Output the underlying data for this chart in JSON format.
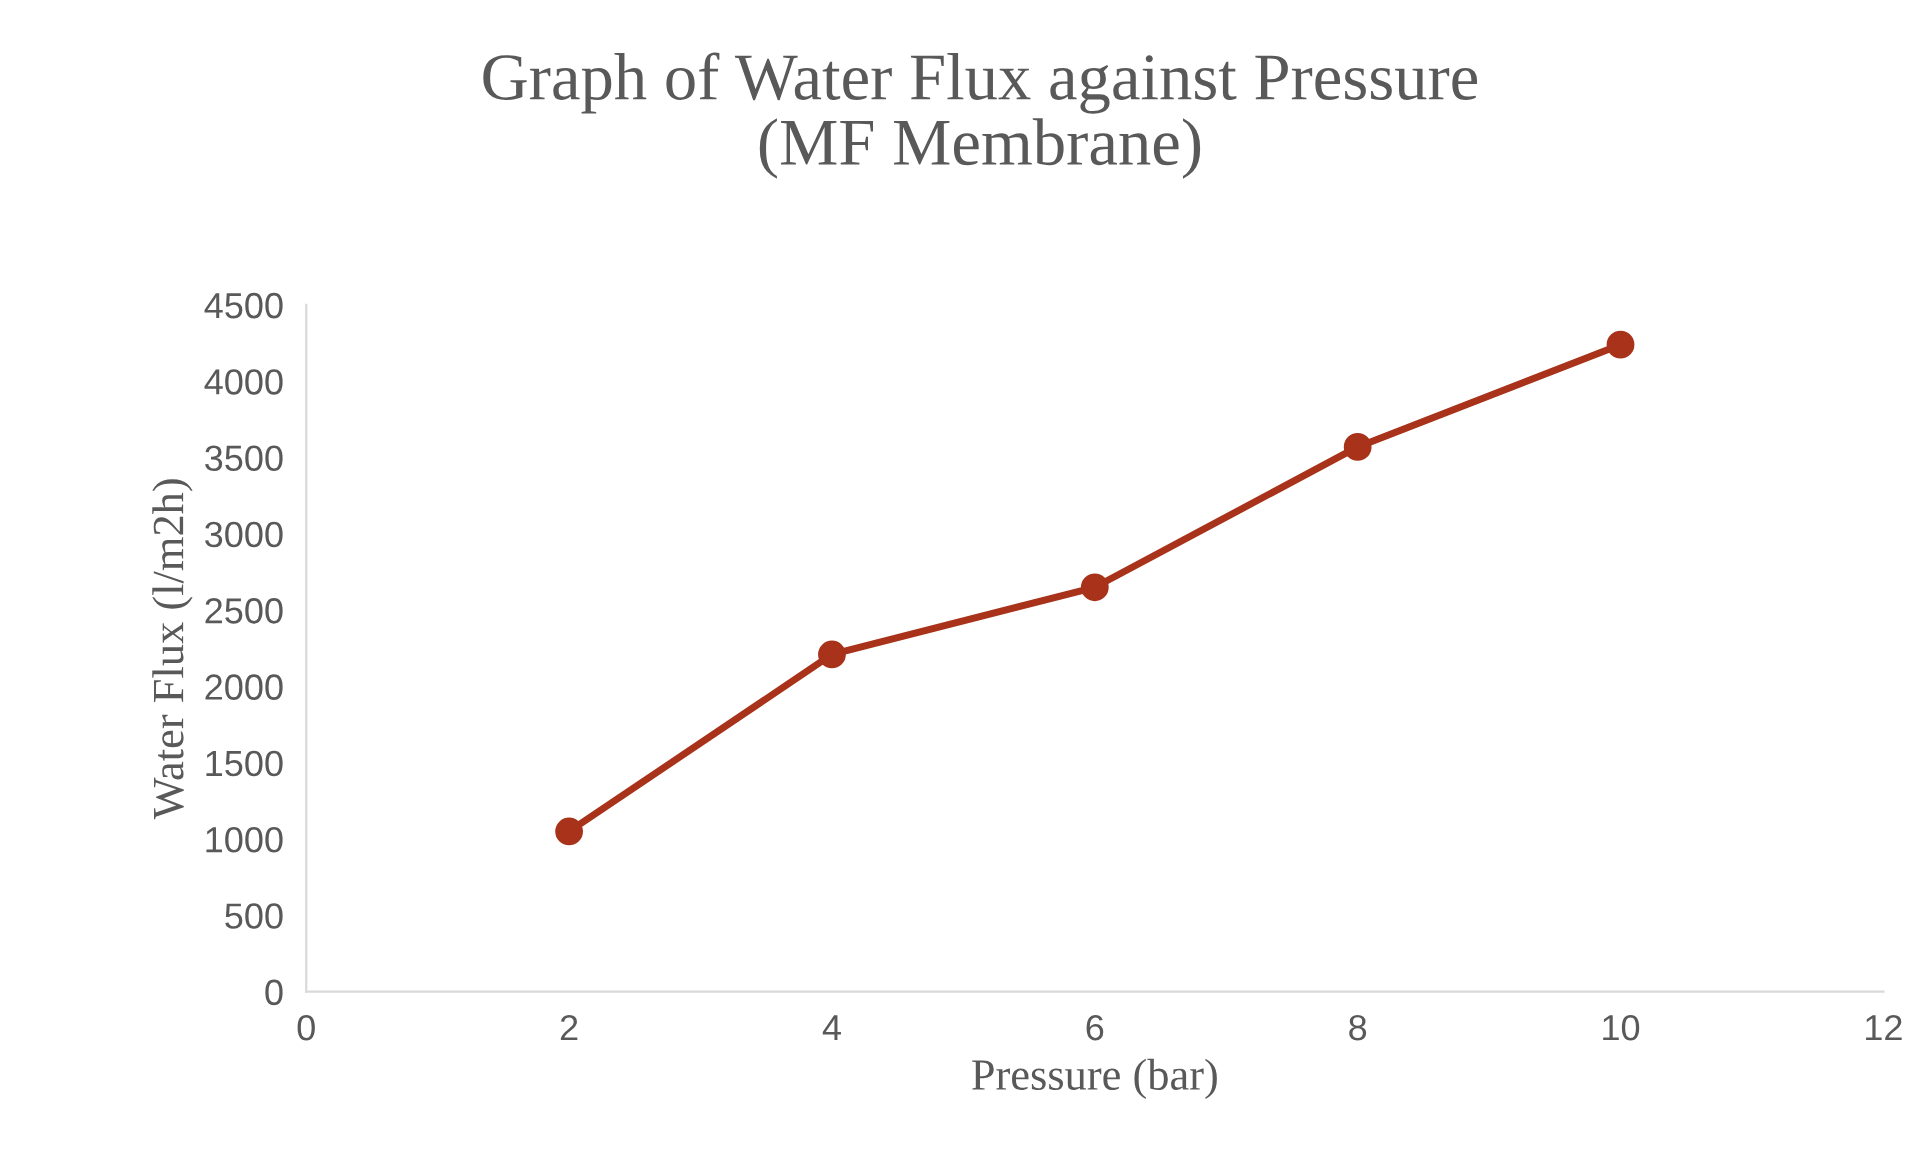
{
  "chart_data": {
    "type": "line",
    "title": "Graph of Water Flux against Pressure\n(MF Membrane)",
    "xlabel": "Pressure (bar)",
    "ylabel": "Water Flux (l/m2h)",
    "x": [
      2,
      4,
      6,
      8,
      10
    ],
    "series": [
      {
        "color": "#a8321a",
        "values": [
          1050,
          2210,
          2650,
          3570,
          4240
        ]
      }
    ],
    "xlim": [
      0,
      12
    ],
    "xticks": [
      0,
      2,
      4,
      6,
      8,
      10,
      12
    ],
    "ylim": [
      0,
      4500
    ],
    "yticks": [
      0,
      500,
      1000,
      1500,
      2000,
      2500,
      3000,
      3500,
      4000,
      4500
    ],
    "grid": false,
    "legend": false,
    "marker": "circle",
    "line_style": "solid"
  }
}
